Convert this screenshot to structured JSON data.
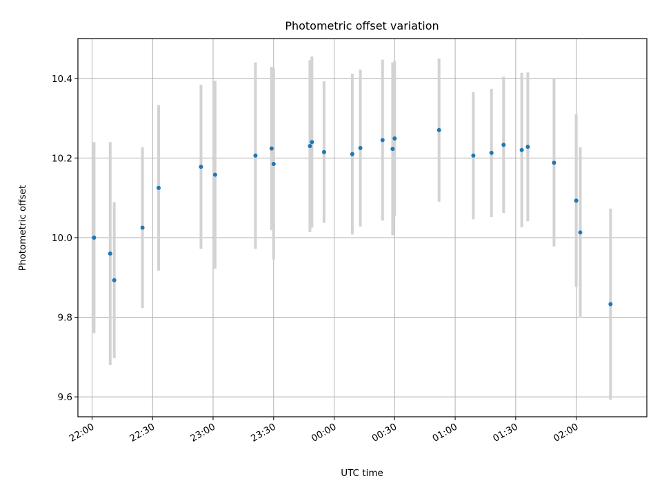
{
  "chart_data": {
    "type": "scatter",
    "title": "Photometric offset variation",
    "xlabel": "UTC time",
    "ylabel": "Photometric offset",
    "x_tick_labels": [
      "22:00",
      "22:30",
      "23:00",
      "23:30",
      "00:00",
      "00:30",
      "01:00",
      "01:30",
      "02:00"
    ],
    "y_ticks": [
      9.6,
      9.8,
      10.0,
      10.2,
      10.4
    ],
    "y_tick_labels": [
      "9.6",
      "9.8",
      "10.0",
      "10.2",
      "10.4"
    ],
    "xlim": [
      "21:53",
      "02:35"
    ],
    "ylim": [
      9.55,
      10.5
    ],
    "grid": true,
    "colors": {
      "point": "#1f77b4",
      "errorbar": "#d3d3d3",
      "grid": "#b0b0b0"
    },
    "series": [
      {
        "points": [
          {
            "x": "22:01",
            "y": 10.0,
            "err": 0.24
          },
          {
            "x": "22:09",
            "y": 9.96,
            "err": 0.28
          },
          {
            "x": "22:11",
            "y": 9.893,
            "err": 0.196
          },
          {
            "x": "22:25",
            "y": 10.025,
            "err": 0.202
          },
          {
            "x": "22:33",
            "y": 10.125,
            "err": 0.208
          },
          {
            "x": "22:54",
            "y": 10.178,
            "err": 0.206
          },
          {
            "x": "23:01",
            "y": 10.158,
            "err": 0.236
          },
          {
            "x": "23:21",
            "y": 10.206,
            "err": 0.234
          },
          {
            "x": "23:29",
            "y": 10.224,
            "err": 0.205
          },
          {
            "x": "23:30",
            "y": 10.185,
            "err": 0.24
          },
          {
            "x": "23:48",
            "y": 10.23,
            "err": 0.216
          },
          {
            "x": "23:49",
            "y": 10.24,
            "err": 0.215
          },
          {
            "x": "23:55",
            "y": 10.215,
            "err": 0.178
          },
          {
            "x": "00:09",
            "y": 10.21,
            "err": 0.202
          },
          {
            "x": "00:13",
            "y": 10.225,
            "err": 0.197
          },
          {
            "x": "00:24",
            "y": 10.245,
            "err": 0.202
          },
          {
            "x": "00:29",
            "y": 10.223,
            "err": 0.217
          },
          {
            "x": "00:30",
            "y": 10.249,
            "err": 0.195
          },
          {
            "x": "00:52",
            "y": 10.27,
            "err": 0.18
          },
          {
            "x": "01:09",
            "y": 10.206,
            "err": 0.16
          },
          {
            "x": "01:18",
            "y": 10.213,
            "err": 0.161
          },
          {
            "x": "01:24",
            "y": 10.233,
            "err": 0.171
          },
          {
            "x": "01:33",
            "y": 10.22,
            "err": 0.194
          },
          {
            "x": "01:36",
            "y": 10.228,
            "err": 0.187
          },
          {
            "x": "01:49",
            "y": 10.188,
            "err": 0.21
          },
          {
            "x": "02:00",
            "y": 10.093,
            "err": 0.217
          },
          {
            "x": "02:02",
            "y": 10.013,
            "err": 0.214
          },
          {
            "x": "02:17",
            "y": 9.833,
            "err": 0.24
          }
        ]
      }
    ]
  }
}
